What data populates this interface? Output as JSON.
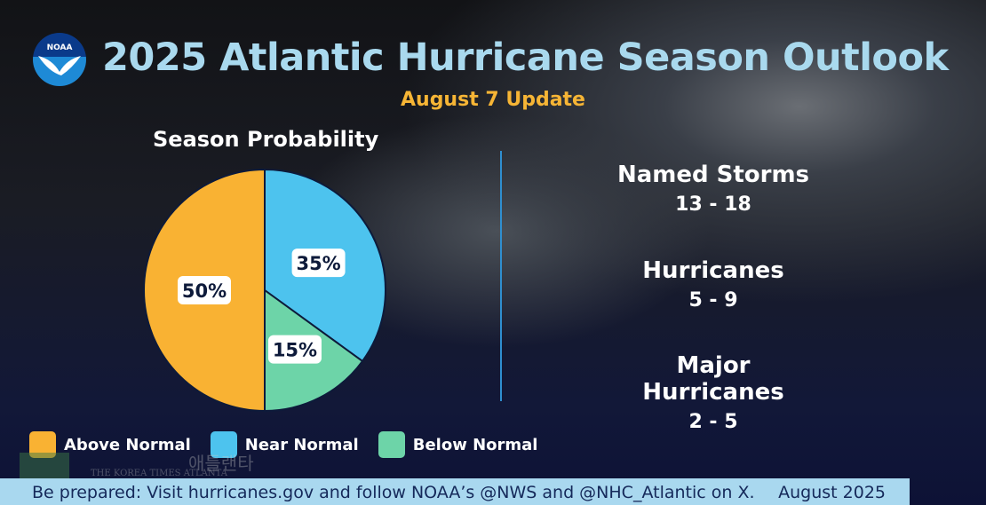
{
  "header": {
    "logo_text": "NOAA",
    "title": "2025 Atlantic Hurricane Season Outlook",
    "subtitle": "August 7 Update"
  },
  "chart_data": {
    "type": "pie",
    "title": "Season Probability",
    "slices": [
      {
        "label": "Near Normal",
        "value": 35,
        "display": "35%",
        "color": "#4DC3EE"
      },
      {
        "label": "Below Normal",
        "value": 15,
        "display": "15%",
        "color": "#6DD4A8"
      },
      {
        "label": "Above Normal",
        "value": 50,
        "display": "50%",
        "color": "#F9B233"
      }
    ],
    "legend_position": "bottom"
  },
  "legend": [
    {
      "label": "Above Normal",
      "color": "#F9B233"
    },
    {
      "label": "Near Normal",
      "color": "#4DC3EE"
    },
    {
      "label": "Below Normal",
      "color": "#6DD4A8"
    }
  ],
  "stats": [
    {
      "label": "Named Storms",
      "value": "13 - 18"
    },
    {
      "label": "Hurricanes",
      "value": "5 - 9"
    },
    {
      "label": "Major Hurricanes",
      "value": "2 - 5"
    }
  ],
  "footer": {
    "message": "Be prepared: Visit hurricanes.gov and follow NOAA’s @NWS and @NHC_Atlantic on X.",
    "date": "August 2025"
  },
  "watermark": {
    "korean": "애틀랜타",
    "english": "THE KOREA TIMES ATLANTA"
  }
}
